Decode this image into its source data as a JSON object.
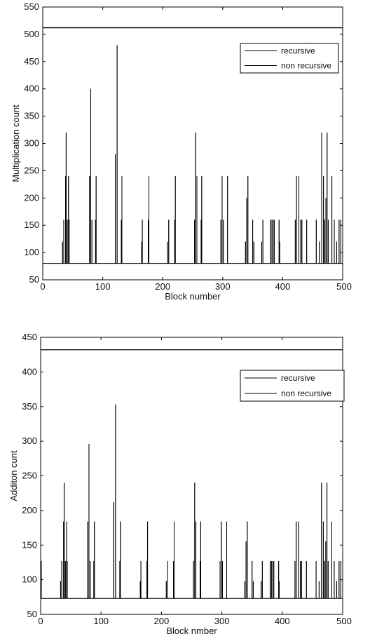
{
  "chart_data": [
    {
      "type": "line",
      "xlabel": "Block number",
      "ylabel": "Multiplication count",
      "xlim": [
        0,
        500
      ],
      "ylim": [
        50,
        550
      ],
      "xticks": [
        0,
        100,
        200,
        300,
        400,
        500
      ],
      "yticks": [
        50,
        100,
        150,
        200,
        250,
        300,
        350,
        400,
        450,
        500,
        550
      ],
      "grid": false,
      "legend_position": "top-right",
      "series": [
        {
          "name": "recursive",
          "baseline": 80,
          "spikes": [
            [
              33,
              120
            ],
            [
              35,
              160
            ],
            [
              38,
              240
            ],
            [
              39,
              320
            ],
            [
              41,
              160
            ],
            [
              43,
              240
            ],
            [
              44,
              160
            ],
            [
              78,
              240
            ],
            [
              80,
              400
            ],
            [
              82,
              160
            ],
            [
              88,
              160
            ],
            [
              89,
              240
            ],
            [
              121,
              280
            ],
            [
              124,
              480
            ],
            [
              131,
              160
            ],
            [
              132,
              240
            ],
            [
              165,
              120
            ],
            [
              166,
              160
            ],
            [
              176,
              160
            ],
            [
              177,
              240
            ],
            [
              208,
              120
            ],
            [
              210,
              160
            ],
            [
              220,
              160
            ],
            [
              221,
              240
            ],
            [
              253,
              160
            ],
            [
              255,
              320
            ],
            [
              257,
              240
            ],
            [
              264,
              160
            ],
            [
              265,
              240
            ],
            [
              297,
              160
            ],
            [
              299,
              240
            ],
            [
              301,
              160
            ],
            [
              308,
              240
            ],
            [
              338,
              120
            ],
            [
              340,
              200
            ],
            [
              342,
              240
            ],
            [
              350,
              160
            ],
            [
              352,
              120
            ],
            [
              365,
              120
            ],
            [
              367,
              160
            ],
            [
              380,
              160
            ],
            [
              382,
              160
            ],
            [
              384,
              160
            ],
            [
              386,
              160
            ],
            [
              394,
              160
            ],
            [
              395,
              120
            ],
            [
              421,
              160
            ],
            [
              423,
              240
            ],
            [
              427,
              240
            ],
            [
              430,
              160
            ],
            [
              432,
              160
            ],
            [
              440,
              160
            ],
            [
              456,
              160
            ],
            [
              461,
              120
            ],
            [
              465,
              320
            ],
            [
              468,
              240
            ],
            [
              470,
              160
            ],
            [
              472,
              200
            ],
            [
              474,
              320
            ],
            [
              476,
              160
            ],
            [
              482,
              240
            ],
            [
              486,
              160
            ],
            [
              490,
              120
            ],
            [
              494,
              160
            ],
            [
              497,
              160
            ]
          ]
        },
        {
          "name": "non recursive",
          "constant": 512
        }
      ]
    },
    {
      "type": "line",
      "xlabel": "Block nmber",
      "ylabel": "Additon cunt",
      "xlim": [
        0,
        500
      ],
      "ylim": [
        50,
        450
      ],
      "xticks": [
        0,
        100,
        200,
        300,
        400,
        500
      ],
      "yticks": [
        50,
        100,
        150,
        200,
        250,
        300,
        350,
        400,
        450
      ],
      "grid": false,
      "legend_position": "top-right",
      "series": [
        {
          "name": "recursive",
          "baseline": 73,
          "spikes": [
            [
              1,
              127
            ],
            [
              33,
              98
            ],
            [
              35,
              127
            ],
            [
              38,
              184
            ],
            [
              39,
              240
            ],
            [
              41,
              127
            ],
            [
              43,
              184
            ],
            [
              44,
              127
            ],
            [
              78,
              184
            ],
            [
              80,
              296
            ],
            [
              82,
              127
            ],
            [
              88,
              127
            ],
            [
              89,
              184
            ],
            [
              121,
              212
            ],
            [
              124,
              353
            ],
            [
              131,
              127
            ],
            [
              132,
              184
            ],
            [
              165,
              98
            ],
            [
              166,
              127
            ],
            [
              176,
              127
            ],
            [
              177,
              184
            ],
            [
              208,
              98
            ],
            [
              210,
              127
            ],
            [
              220,
              127
            ],
            [
              221,
              184
            ],
            [
              253,
              127
            ],
            [
              255,
              240
            ],
            [
              257,
              184
            ],
            [
              264,
              127
            ],
            [
              265,
              184
            ],
            [
              297,
              127
            ],
            [
              299,
              184
            ],
            [
              301,
              127
            ],
            [
              308,
              184
            ],
            [
              338,
              98
            ],
            [
              340,
              155
            ],
            [
              342,
              184
            ],
            [
              350,
              127
            ],
            [
              352,
              98
            ],
            [
              365,
              98
            ],
            [
              367,
              127
            ],
            [
              380,
              127
            ],
            [
              382,
              127
            ],
            [
              384,
              127
            ],
            [
              386,
              127
            ],
            [
              394,
              127
            ],
            [
              395,
              98
            ],
            [
              421,
              127
            ],
            [
              423,
              184
            ],
            [
              427,
              184
            ],
            [
              430,
              127
            ],
            [
              432,
              127
            ],
            [
              440,
              127
            ],
            [
              456,
              127
            ],
            [
              461,
              98
            ],
            [
              465,
              240
            ],
            [
              468,
              184
            ],
            [
              470,
              127
            ],
            [
              472,
              155
            ],
            [
              474,
              240
            ],
            [
              476,
              127
            ],
            [
              482,
              184
            ],
            [
              486,
              127
            ],
            [
              490,
              98
            ],
            [
              494,
              127
            ],
            [
              497,
              127
            ]
          ]
        },
        {
          "name": "non recursive",
          "constant": 432
        }
      ]
    }
  ]
}
